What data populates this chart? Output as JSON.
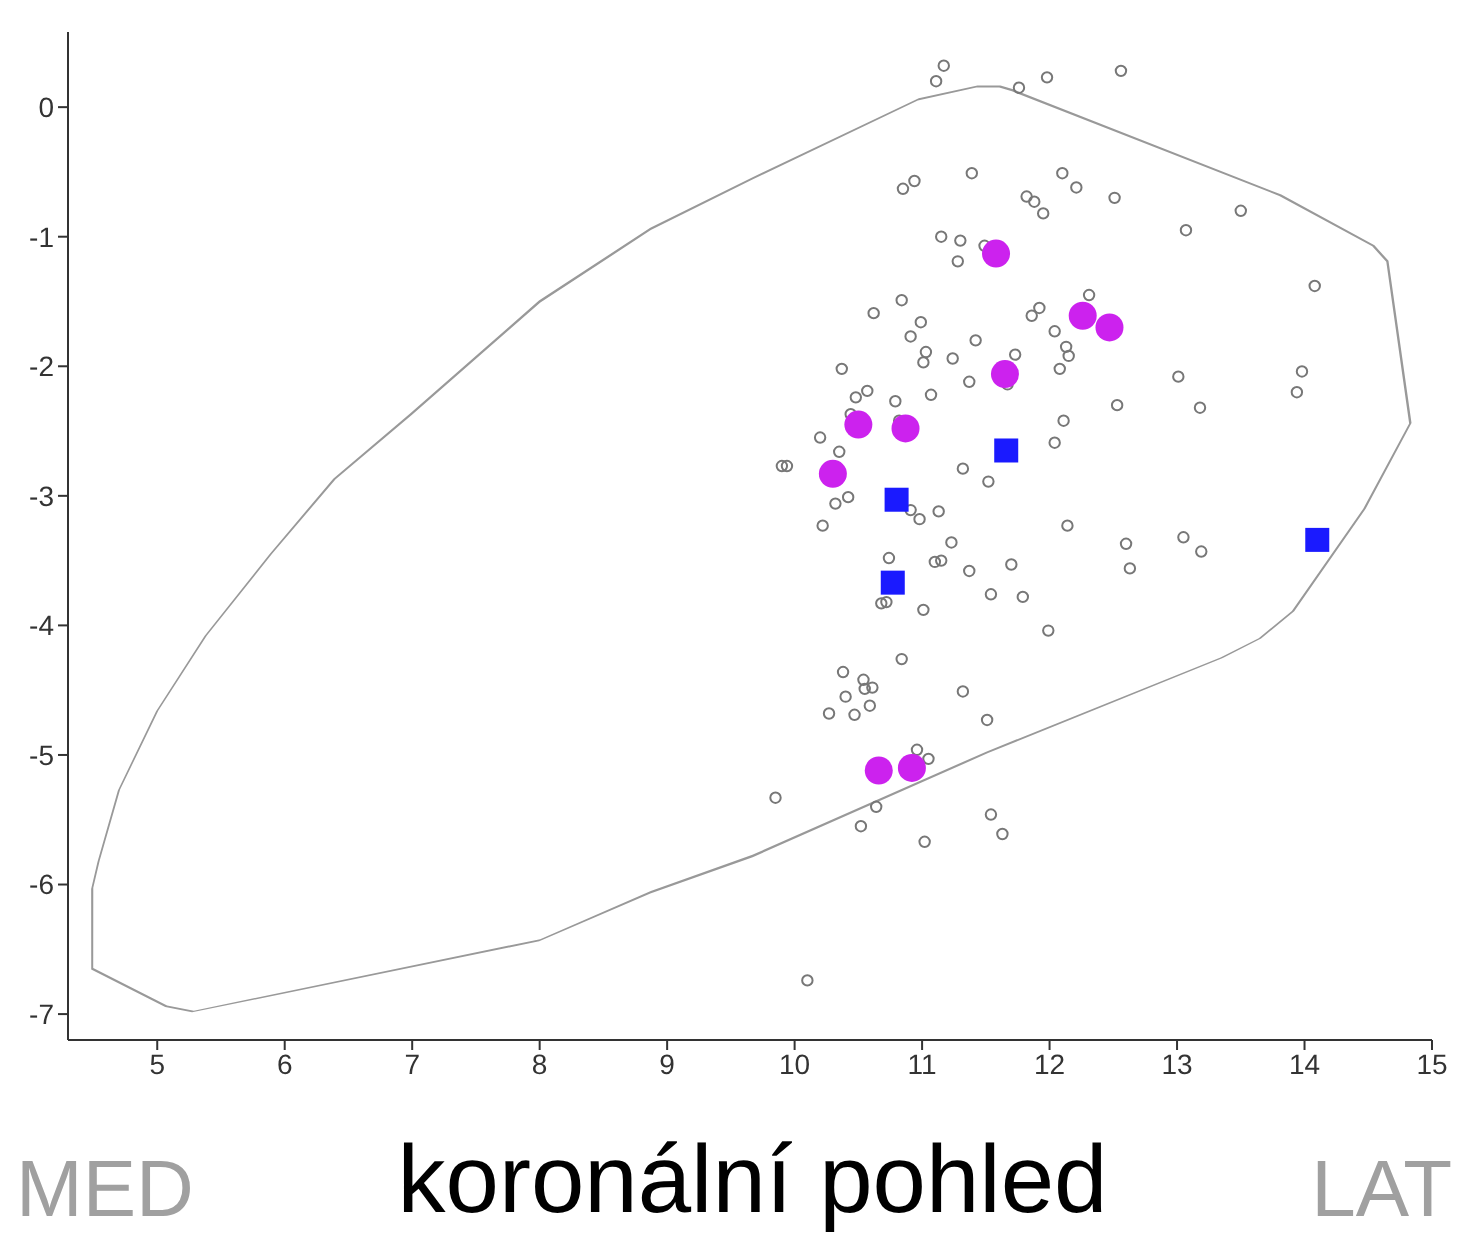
{
  "chart_data": {
    "type": "scatter",
    "title": "koronální pohled",
    "annotations": [
      "MED",
      "LAT"
    ],
    "xlim": [
      4.3,
      15
    ],
    "xticks": [
      5,
      6,
      7,
      8,
      9,
      10,
      11,
      12,
      13,
      14,
      15
    ],
    "ylim": [
      -7.2,
      0.58
    ],
    "yticks": [
      0,
      -1,
      -2,
      -3,
      -4,
      -5,
      -6,
      -7
    ],
    "grid": false,
    "legend": false,
    "series": [
      {
        "type": "scatter",
        "marker": "circle",
        "color": "#777777",
        "x": [
          11.17,
          11.11,
          11.76,
          11.98,
          12.56,
          10.85,
          10.94,
          11.39,
          12.1,
          12.21,
          11.82,
          11.88,
          11.95,
          12.51,
          13.07,
          13.5,
          11.15,
          11.3,
          11.49,
          11.28,
          14.08,
          12.31,
          11.92,
          11.86,
          10.84,
          10.62,
          10.99,
          10.91,
          11.42,
          12.04,
          12.13,
          12.15,
          11.03,
          11.01,
          11.24,
          11.73,
          12.08,
          10.37,
          10.48,
          10.57,
          10.79,
          11.07,
          11.37,
          11.67,
          13.01,
          13.98,
          13.94,
          12.53,
          13.18,
          10.44,
          10.82,
          10.2,
          10.35,
          12.11,
          12.04,
          9.9,
          9.94,
          10.42,
          10.32,
          11.32,
          11.52,
          10.91,
          10.98,
          11.13,
          10.22,
          12.14,
          11.23,
          10.74,
          11.1,
          11.15,
          11.37,
          11.7,
          12.6,
          12.63,
          13.05,
          13.19,
          10.68,
          10.72,
          11.01,
          11.54,
          11.79,
          11.99,
          10.84,
          10.38,
          10.54,
          10.61,
          10.4,
          10.55,
          10.27,
          10.47,
          10.59,
          11.32,
          11.51,
          10.96,
          11.05,
          9.85,
          10.64,
          10.52,
          11.02,
          11.54,
          11.63,
          10.1
        ],
        "values": [
          0.32,
          0.2,
          0.15,
          0.23,
          0.28,
          -0.63,
          -0.57,
          -0.51,
          -0.51,
          -0.62,
          -0.69,
          -0.73,
          -0.82,
          -0.7,
          -0.95,
          -0.8,
          -1.0,
          -1.03,
          -1.07,
          -1.19,
          -1.38,
          -1.45,
          -1.55,
          -1.61,
          -1.49,
          -1.59,
          -1.66,
          -1.77,
          -1.8,
          -1.73,
          -1.85,
          -1.92,
          -1.89,
          -1.97,
          -1.94,
          -1.91,
          -2.02,
          -2.02,
          -2.24,
          -2.19,
          -2.27,
          -2.22,
          -2.12,
          -2.14,
          -2.08,
          -2.04,
          -2.2,
          -2.3,
          -2.32,
          -2.37,
          -2.42,
          -2.55,
          -2.66,
          -2.42,
          -2.59,
          -2.77,
          -2.77,
          -3.01,
          -3.06,
          -2.79,
          -2.89,
          -3.11,
          -3.18,
          -3.12,
          -3.23,
          -3.23,
          -3.36,
          -3.48,
          -3.51,
          -3.5,
          -3.58,
          -3.53,
          -3.37,
          -3.56,
          -3.32,
          -3.43,
          -3.83,
          -3.82,
          -3.88,
          -3.76,
          -3.78,
          -4.04,
          -4.26,
          -4.36,
          -4.42,
          -4.48,
          -4.55,
          -4.49,
          -4.68,
          -4.69,
          -4.62,
          -4.51,
          -4.73,
          -4.96,
          -5.03,
          -5.33,
          -5.4,
          -5.55,
          -5.67,
          -5.46,
          -5.61,
          -6.74
        ]
      },
      {
        "type": "scatter",
        "marker": "circle",
        "color": "#cc22ee",
        "x": [
          11.58,
          12.26,
          12.47,
          11.65,
          10.5,
          10.87,
          10.3,
          10.66,
          10.92
        ],
        "values": [
          -1.13,
          -1.61,
          -1.7,
          -2.06,
          -2.45,
          -2.48,
          -2.83,
          -5.12,
          -5.1
        ]
      },
      {
        "type": "scatter",
        "marker": "square",
        "color": "#1a1aff",
        "x": [
          11.66,
          10.8,
          10.77,
          14.1
        ],
        "values": [
          -2.65,
          -3.03,
          -3.67,
          -3.34
        ]
      }
    ]
  }
}
